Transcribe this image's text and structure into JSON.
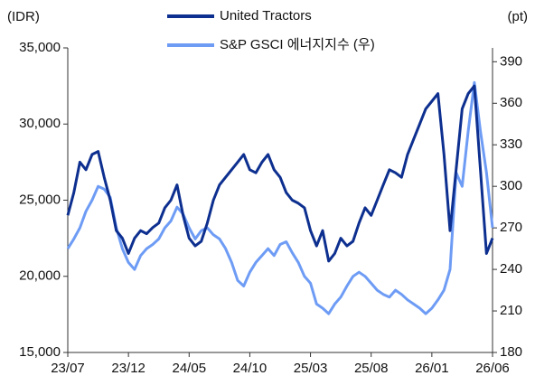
{
  "chart_data": {
    "type": "line",
    "y_axis_label": "(IDR)",
    "y2_axis_label": "(pt)",
    "categories": [
      "23/07",
      null,
      null,
      null,
      null,
      null,
      null,
      null,
      null,
      null,
      "23/12",
      null,
      null,
      null,
      null,
      null,
      null,
      null,
      null,
      null,
      "24/05",
      null,
      null,
      null,
      null,
      null,
      null,
      null,
      null,
      null,
      "24/10",
      null,
      null,
      null,
      null,
      null,
      null,
      null,
      null,
      null,
      "25/03",
      null,
      null,
      null,
      null,
      null,
      null,
      null,
      null,
      null,
      "25/08",
      null,
      null,
      null,
      null,
      null,
      null,
      null,
      null,
      null,
      "26/01",
      null,
      null,
      null,
      null,
      null,
      null,
      null,
      null,
      null,
      "26/06"
    ],
    "series": [
      {
        "name": "United Tractors",
        "color": "#0d2f8f",
        "axis": "y",
        "values": [
          24000,
          25500,
          27500,
          27000,
          28000,
          28200,
          26500,
          25000,
          23000,
          22500,
          21500,
          22500,
          23000,
          22800,
          23200,
          23500,
          24500,
          25000,
          26000,
          24000,
          22500,
          22000,
          22300,
          23500,
          25000,
          26000,
          26500,
          27000,
          27500,
          28000,
          27000,
          26800,
          27500,
          28000,
          27000,
          26500,
          25500,
          25000,
          24800,
          24500,
          23000,
          22000,
          23000,
          21000,
          21500,
          22500,
          22000,
          22300,
          23500,
          24500,
          24000,
          25000,
          26000,
          27000,
          26800,
          26500,
          28000,
          29000,
          30000,
          31000,
          31500,
          32000,
          28000,
          23000,
          27000,
          31000,
          32000,
          32500,
          27000,
          21500,
          22500
        ]
      },
      {
        "name": "S&P GSCI 에너지지수 (우)",
        "color": "#6e9cf5",
        "axis": "y2",
        "values": [
          255,
          262,
          270,
          282,
          290,
          300,
          298,
          292,
          270,
          255,
          245,
          240,
          250,
          255,
          258,
          262,
          270,
          275,
          285,
          280,
          270,
          262,
          268,
          270,
          265,
          262,
          255,
          245,
          232,
          228,
          238,
          245,
          250,
          255,
          250,
          258,
          260,
          252,
          245,
          235,
          230,
          215,
          212,
          208,
          215,
          220,
          228,
          235,
          238,
          235,
          230,
          225,
          222,
          220,
          225,
          222,
          218,
          215,
          212,
          208,
          212,
          218,
          225,
          240,
          310,
          300,
          340,
          375,
          340,
          310,
          270
        ]
      }
    ],
    "ylim": [
      15000,
      35000
    ],
    "yticks": [
      {
        "value": 15000,
        "label": "15,000"
      },
      {
        "value": 20000,
        "label": "20,000"
      },
      {
        "value": 25000,
        "label": "25,000"
      },
      {
        "value": 30000,
        "label": "30,000"
      },
      {
        "value": 35000,
        "label": "35,000"
      }
    ],
    "y2lim": [
      180,
      400
    ],
    "y2ticks": [
      180,
      210,
      240,
      270,
      300,
      330,
      360,
      390
    ],
    "grid": false
  }
}
